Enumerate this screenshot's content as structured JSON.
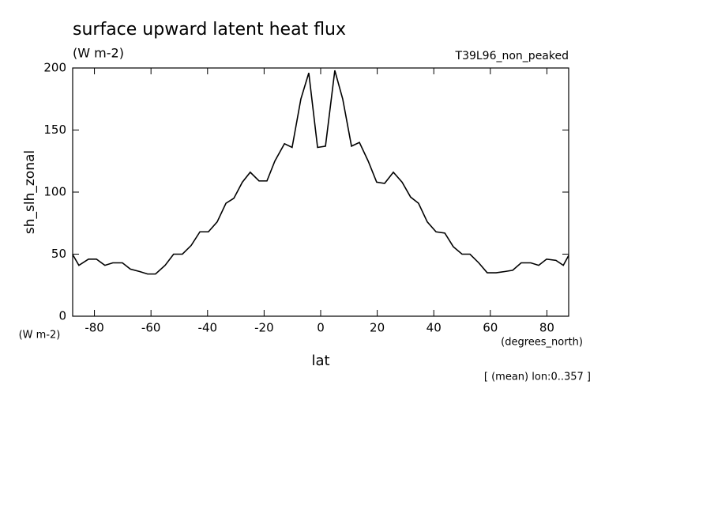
{
  "chart_data": {
    "type": "line",
    "title": "surface upward latent heat flux",
    "subtitle": "(W m-2)",
    "annotation_right": "T39L96_non_peaked",
    "y_label": "sh_slh_zonal",
    "y_units": "(W m-2)",
    "x_units": "(degrees_north)",
    "x_label": "lat",
    "footnote": "[ (mean) lon:0..357 ]",
    "color": "#000000",
    "x": [
      -87.7,
      -85.5,
      -82.1,
      -79.3,
      -76.3,
      -73.5,
      -70.1,
      -67.3,
      -64.0,
      -61.2,
      -58.4,
      -55.0,
      -52.0,
      -48.9,
      -45.8,
      -42.7,
      -39.7,
      -36.6,
      -33.5,
      -30.7,
      -27.7,
      -24.9,
      -21.8,
      -19.0,
      -16.2,
      -12.8,
      -10.1,
      -7.0,
      -4.2,
      -1.1,
      1.7,
      5.0,
      7.8,
      10.9,
      13.7,
      16.8,
      19.8,
      22.6,
      25.7,
      28.8,
      31.8,
      34.6,
      37.7,
      40.8,
      43.9,
      46.9,
      50.0,
      52.8,
      55.9,
      58.9,
      62.0,
      65.1,
      67.9,
      70.9,
      74.3,
      77.1,
      79.9,
      83.2,
      85.8,
      87.7
    ],
    "values": [
      49.7,
      41,
      46,
      46,
      41,
      43,
      43,
      38,
      36,
      34,
      34,
      41,
      50,
      50,
      57,
      68,
      68,
      76,
      91,
      95,
      108,
      116,
      109,
      109,
      125,
      139,
      136,
      175,
      196,
      136,
      137,
      198,
      175,
      137,
      140,
      125,
      108,
      107,
      116,
      108,
      96,
      91,
      76,
      68,
      67,
      56,
      50,
      50,
      43,
      35,
      35,
      36,
      37,
      43,
      43,
      41,
      46,
      45,
      41,
      49
    ],
    "xlim": [
      -87.7,
      87.7
    ],
    "ylim": [
      0,
      200
    ],
    "xticks": [
      -80,
      -60,
      -40,
      -20,
      0,
      20,
      40,
      60,
      80
    ],
    "yticks": [
      0,
      50,
      100,
      150,
      200
    ]
  }
}
